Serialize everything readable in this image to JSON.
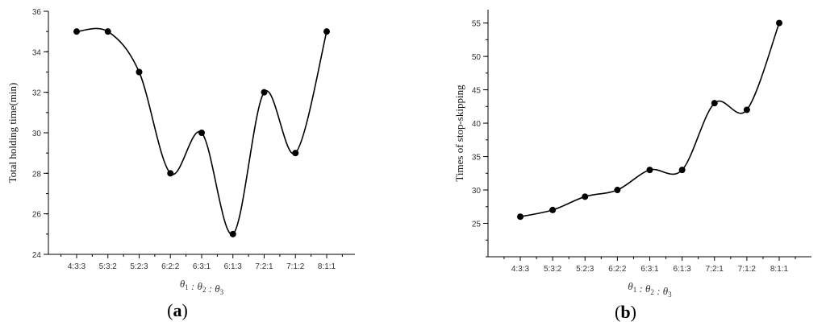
{
  "chart_data": [
    {
      "type": "line",
      "panel_label": "(a)",
      "categories": [
        "4:3:3",
        "5:3:2",
        "5:2:3",
        "6:2:2",
        "6:3:1",
        "6:1:3",
        "7:2:1",
        "7:1:2",
        "8:1:1"
      ],
      "values": [
        35,
        35,
        33,
        28,
        30,
        25,
        32,
        29,
        35
      ],
      "xlabel": "θ1 : θ2 : θ3",
      "ylabel": "Total holding time(min)",
      "ylim": [
        24,
        36
      ],
      "yticks": [
        24,
        26,
        28,
        30,
        32,
        34,
        36
      ],
      "smooth": true,
      "markers": true,
      "grid": false
    },
    {
      "type": "line",
      "panel_label": "(b)",
      "categories": [
        "4:3:3",
        "5:3:2",
        "5:2:3",
        "6:2:2",
        "6:3:1",
        "6:1:3",
        "7:2:1",
        "7:1:2",
        "8:1:1"
      ],
      "values": [
        26,
        27,
        29,
        30,
        33,
        33,
        43,
        42,
        55
      ],
      "xlabel": "θ1 : θ2 : θ3",
      "ylabel": "Times of stop-skipping",
      "ylim": [
        20,
        57
      ],
      "yticks": [
        25,
        30,
        35,
        40,
        45,
        50,
        55
      ],
      "smooth": true,
      "markers": true,
      "grid": false
    }
  ]
}
